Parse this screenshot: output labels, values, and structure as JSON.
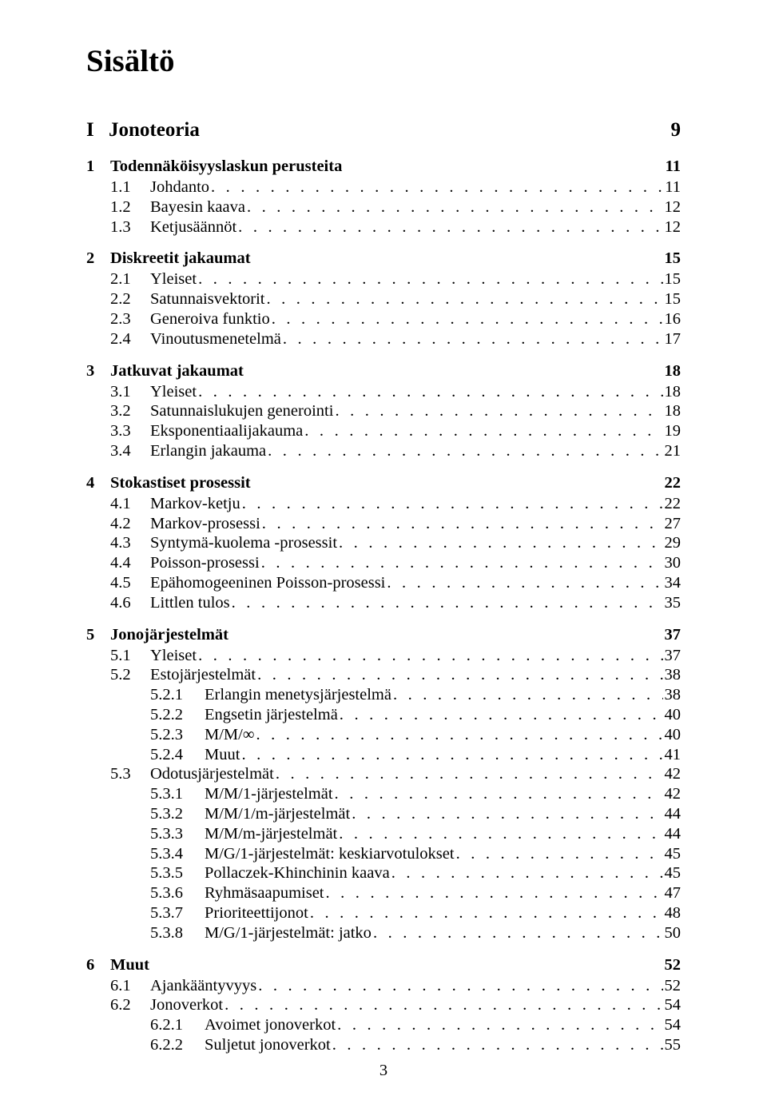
{
  "title": "Sisältö",
  "page_number": "3",
  "parts": [
    {
      "num": "I",
      "label": "Jonoteoria",
      "page": "9"
    }
  ],
  "chapters": [
    {
      "num": "1",
      "label": "Todennäköisyyslaskun perusteita",
      "page": "11",
      "sections": [
        {
          "num": "1.1",
          "label": "Johdanto",
          "page": "11"
        },
        {
          "num": "1.2",
          "label": "Bayesin kaava",
          "page": "12"
        },
        {
          "num": "1.3",
          "label": "Ketjusäännöt",
          "page": "12"
        }
      ]
    },
    {
      "num": "2",
      "label": "Diskreetit jakaumat",
      "page": "15",
      "sections": [
        {
          "num": "2.1",
          "label": "Yleiset",
          "page": "15"
        },
        {
          "num": "2.2",
          "label": "Satunnaisvektorit",
          "page": "15"
        },
        {
          "num": "2.3",
          "label": "Generoiva funktio",
          "page": "16"
        },
        {
          "num": "2.4",
          "label": "Vinoutusmenetelmä",
          "page": "17"
        }
      ]
    },
    {
      "num": "3",
      "label": "Jatkuvat jakaumat",
      "page": "18",
      "sections": [
        {
          "num": "3.1",
          "label": "Yleiset",
          "page": "18"
        },
        {
          "num": "3.2",
          "label": "Satunnaislukujen generointi",
          "page": "18"
        },
        {
          "num": "3.3",
          "label": "Eksponentiaalijakauma",
          "page": "19"
        },
        {
          "num": "3.4",
          "label": "Erlangin jakauma",
          "page": "21"
        }
      ]
    },
    {
      "num": "4",
      "label": "Stokastiset prosessit",
      "page": "22",
      "sections": [
        {
          "num": "4.1",
          "label": "Markov-ketju",
          "page": "22"
        },
        {
          "num": "4.2",
          "label": "Markov-prosessi",
          "page": "27"
        },
        {
          "num": "4.3",
          "label": "Syntymä-kuolema -prosessit",
          "page": "29"
        },
        {
          "num": "4.4",
          "label": "Poisson-prosessi",
          "page": "30"
        },
        {
          "num": "4.5",
          "label": "Epähomogeeninen Poisson-prosessi",
          "page": "34"
        },
        {
          "num": "4.6",
          "label": "Littlen tulos",
          "page": "35"
        }
      ]
    },
    {
      "num": "5",
      "label": "Jonojärjestelmät",
      "page": "37",
      "sections": [
        {
          "num": "5.1",
          "label": "Yleiset",
          "page": "37"
        },
        {
          "num": "5.2",
          "label": "Estojärjestelmät",
          "page": "38",
          "subs": [
            {
              "num": "5.2.1",
              "label": "Erlangin menetysjärjestelmä",
              "page": "38"
            },
            {
              "num": "5.2.2",
              "label": "Engsetin järjestelmä",
              "page": "40"
            },
            {
              "num": "5.2.3",
              "label": "M/M/∞",
              "page": "40"
            },
            {
              "num": "5.2.4",
              "label": "Muut",
              "page": "41"
            }
          ]
        },
        {
          "num": "5.3",
          "label": "Odotusjärjestelmät",
          "page": "42",
          "subs": [
            {
              "num": "5.3.1",
              "label": "M/M/1-järjestelmät",
              "page": "42"
            },
            {
              "num": "5.3.2",
              "label": "M/M/1/m-järjestelmät",
              "page": "44"
            },
            {
              "num": "5.3.3",
              "label": "M/M/m-järjestelmät",
              "page": "44"
            },
            {
              "num": "5.3.4",
              "label": "M/G/1-järjestelmät: keskiarvotulokset",
              "page": "45"
            },
            {
              "num": "5.3.5",
              "label": "Pollaczek-Khinchinin kaava",
              "page": "45"
            },
            {
              "num": "5.3.6",
              "label": "Ryhmäsaapumiset",
              "page": "47"
            },
            {
              "num": "5.3.7",
              "label": "Prioriteettijonot",
              "page": "48"
            },
            {
              "num": "5.3.8",
              "label": "M/G/1-järjestelmät: jatko",
              "page": "50"
            }
          ]
        }
      ]
    },
    {
      "num": "6",
      "label": "Muut",
      "page": "52",
      "sections": [
        {
          "num": "6.1",
          "label": "Ajankääntyvyys",
          "page": "52"
        },
        {
          "num": "6.2",
          "label": "Jonoverkot",
          "page": "54",
          "subs": [
            {
              "num": "6.2.1",
              "label": "Avoimet jonoverkot",
              "page": "54"
            },
            {
              "num": "6.2.2",
              "label": "Suljetut jonoverkot",
              "page": "55"
            }
          ]
        }
      ]
    }
  ]
}
